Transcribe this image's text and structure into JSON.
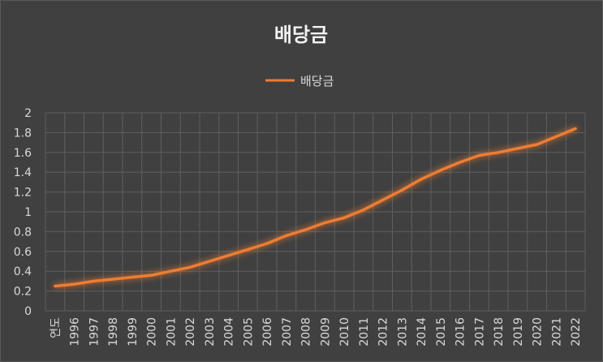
{
  "chart_data": {
    "type": "line",
    "title": "배당금",
    "categories": [
      "연도",
      "1996",
      "1997",
      "1998",
      "1999",
      "2000",
      "2001",
      "2002",
      "2003",
      "2004",
      "2005",
      "2006",
      "2007",
      "2008",
      "2009",
      "2010",
      "2011",
      "2012",
      "2013",
      "2014",
      "2015",
      "2016",
      "2017",
      "2018",
      "2019",
      "2020",
      "2021",
      "2022"
    ],
    "series": [
      {
        "name": "배당금",
        "values": [
          0.25,
          0.27,
          0.3,
          0.32,
          0.34,
          0.36,
          0.4,
          0.44,
          0.5,
          0.56,
          0.62,
          0.68,
          0.76,
          0.82,
          0.89,
          0.94,
          1.02,
          1.12,
          1.22,
          1.33,
          1.42,
          1.5,
          1.57,
          1.6,
          1.64,
          1.68,
          1.76,
          1.84
        ]
      }
    ],
    "ylim": [
      0,
      2
    ],
    "yticks": [
      "0",
      "0.2",
      "0.4",
      "0.6",
      "0.8",
      "1",
      "1.2",
      "1.4",
      "1.6",
      "1.8",
      "2"
    ],
    "grid": true,
    "legend_position": "top",
    "colors": {
      "background": "#404040",
      "line": "#ed7d31",
      "grid": "#5e5e5e",
      "text": "#d9d9d9",
      "title": "#f2f2f2"
    }
  }
}
